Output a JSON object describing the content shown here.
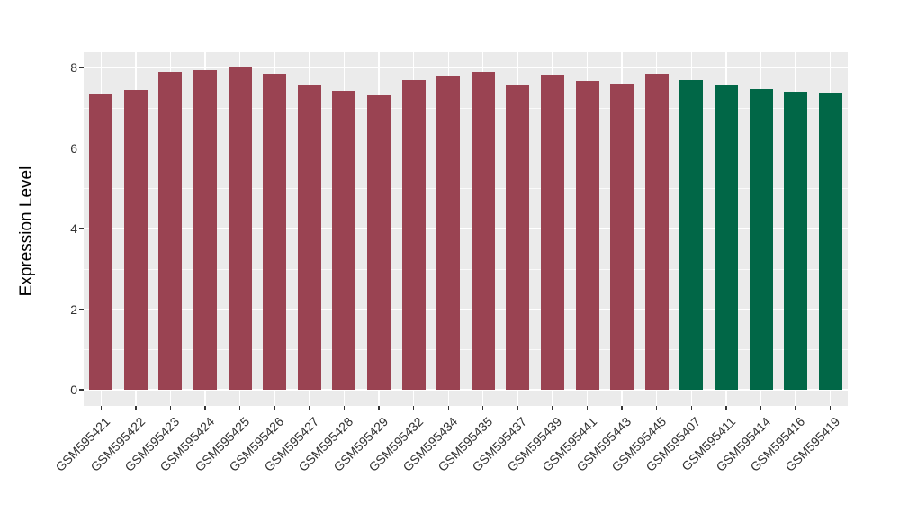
{
  "chart_data": {
    "type": "bar",
    "title": "",
    "xlabel": "",
    "ylabel": "Expression Level",
    "ylim": [
      0,
      8.4
    ],
    "yticks": [
      0,
      2,
      4,
      6,
      8
    ],
    "yticks_minor": [
      1,
      3,
      5,
      7
    ],
    "grid": "on",
    "legend": "none",
    "panel_background": "#EBEBEB",
    "gridline_color": "#FFFFFF",
    "axis_text_color": "#303030",
    "categories": [
      "GSM595421",
      "GSM595422",
      "GSM595423",
      "GSM595424",
      "GSM595425",
      "GSM595426",
      "GSM595427",
      "GSM595428",
      "GSM595429",
      "GSM595432",
      "GSM595434",
      "GSM595435",
      "GSM595437",
      "GSM595439",
      "GSM595441",
      "GSM595443",
      "GSM595445",
      "GSM595407",
      "GSM595411",
      "GSM595414",
      "GSM595416",
      "GSM595419"
    ],
    "values": [
      7.33,
      7.45,
      7.9,
      7.93,
      8.02,
      7.86,
      7.57,
      7.42,
      7.31,
      7.7,
      7.78,
      7.89,
      7.57,
      7.82,
      7.68,
      7.6,
      7.86,
      7.69,
      7.58,
      7.48,
      7.4,
      7.37
    ],
    "bar_colors": [
      "#9A4352",
      "#9A4352",
      "#9A4352",
      "#9A4352",
      "#9A4352",
      "#9A4352",
      "#9A4352",
      "#9A4352",
      "#9A4352",
      "#9A4352",
      "#9A4352",
      "#9A4352",
      "#9A4352",
      "#9A4352",
      "#9A4352",
      "#9A4352",
      "#9A4352",
      "#016747",
      "#016747",
      "#016747",
      "#016747",
      "#016747"
    ]
  }
}
